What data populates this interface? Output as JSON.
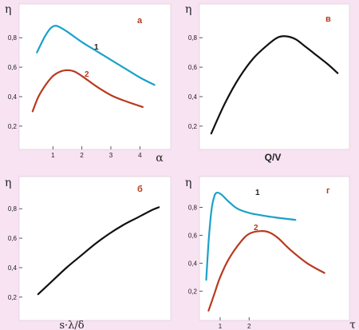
{
  "colors": {
    "background": "#f7e3f2",
    "frame": "#ffffff",
    "teal": "#1aa1c9",
    "red": "#b83a1e",
    "black": "#111111",
    "letter": "#b23a1e"
  },
  "chart_data": [
    {
      "id": "a",
      "type": "line",
      "panel_letter": "а",
      "ylabel": "η",
      "xlabel": "α",
      "ylim": [
        0.08,
        0.98
      ],
      "xlim": [
        0,
        4.9
      ],
      "yticks": [
        "0,2",
        "0,4",
        "0,6",
        "0,8"
      ],
      "ytick_values": [
        0.2,
        0.4,
        0.6,
        0.8
      ],
      "xticks": [
        "1",
        "2",
        "3",
        "4"
      ],
      "xtick_values": [
        1,
        2,
        3,
        4
      ],
      "series": [
        {
          "name": "1",
          "color": "#1aa1c9",
          "x": [
            0.45,
            0.7,
            0.9,
            1.05,
            1.2,
            1.5,
            2.0,
            2.5,
            3.0,
            3.5,
            4.0,
            4.5
          ],
          "y": [
            0.7,
            0.8,
            0.86,
            0.88,
            0.875,
            0.84,
            0.77,
            0.71,
            0.65,
            0.59,
            0.53,
            0.48
          ]
        },
        {
          "name": "2",
          "color": "#b83a1e",
          "x": [
            0.3,
            0.5,
            0.75,
            1.0,
            1.25,
            1.5,
            1.75,
            2.0,
            2.5,
            3.0,
            3.5,
            4.1
          ],
          "y": [
            0.3,
            0.4,
            0.48,
            0.54,
            0.57,
            0.58,
            0.57,
            0.54,
            0.47,
            0.41,
            0.37,
            0.33
          ]
        }
      ]
    },
    {
      "id": "v",
      "type": "line",
      "panel_letter": "в",
      "ylabel": "η",
      "xlabel": "Q/V",
      "ylim": [
        0.08,
        0.98
      ],
      "yticks": [
        "0,2",
        "0,4",
        "0,6",
        "0,8"
      ],
      "ytick_values": [
        0.2,
        0.4,
        0.6,
        0.8
      ],
      "xlim": [
        0,
        1
      ],
      "xticks": [],
      "series": [
        {
          "name": "",
          "color": "#111111",
          "x": [
            0.05,
            0.15,
            0.25,
            0.35,
            0.45,
            0.52,
            0.58,
            0.65,
            0.72,
            0.8,
            0.88,
            0.95
          ],
          "y": [
            0.15,
            0.36,
            0.53,
            0.66,
            0.75,
            0.8,
            0.81,
            0.79,
            0.74,
            0.68,
            0.62,
            0.56
          ]
        }
      ]
    },
    {
      "id": "b",
      "type": "line",
      "panel_letter": "б",
      "ylabel": "η",
      "xlabel": "s·λ/δ",
      "ylim": [
        0.08,
        0.98
      ],
      "yticks": [
        "0,2",
        "0,4",
        "0,6",
        "0,8"
      ],
      "ytick_values": [
        0.2,
        0.4,
        0.6,
        0.8
      ],
      "xlim": [
        0,
        1
      ],
      "xticks": [],
      "series": [
        {
          "name": "",
          "color": "#111111",
          "x": [
            0.1,
            0.2,
            0.3,
            0.4,
            0.5,
            0.6,
            0.7,
            0.8,
            0.9,
            0.95
          ],
          "y": [
            0.22,
            0.31,
            0.4,
            0.48,
            0.56,
            0.63,
            0.69,
            0.74,
            0.79,
            0.81
          ]
        }
      ]
    },
    {
      "id": "g",
      "type": "line",
      "panel_letter": "г",
      "ylabel": "η",
      "xlabel": "τ",
      "ylim": [
        0.03,
        0.98
      ],
      "xlim": [
        0.45,
        5.3
      ],
      "yticks": [
        "0,2",
        "0,4",
        "0,6",
        "0,8"
      ],
      "ytick_values": [
        0.2,
        0.4,
        0.6,
        0.8
      ],
      "xticks": [
        "1",
        "2"
      ],
      "xtick_values": [
        1,
        2
      ],
      "series": [
        {
          "name": "1",
          "color": "#1aa1c9",
          "x": [
            0.52,
            0.6,
            0.7,
            0.8,
            0.9,
            1.05,
            1.3,
            1.6,
            2.0,
            2.5,
            3.0,
            3.6
          ],
          "y": [
            0.28,
            0.55,
            0.78,
            0.88,
            0.905,
            0.89,
            0.84,
            0.79,
            0.76,
            0.74,
            0.725,
            0.71
          ]
        },
        {
          "name": "2",
          "color": "#b83a1e",
          "x": [
            0.6,
            0.8,
            1.0,
            1.3,
            1.7,
            2.0,
            2.4,
            2.7,
            3.0,
            3.4,
            4.0,
            4.6
          ],
          "y": [
            0.06,
            0.18,
            0.3,
            0.43,
            0.55,
            0.61,
            0.63,
            0.62,
            0.58,
            0.5,
            0.4,
            0.33
          ]
        }
      ]
    }
  ]
}
